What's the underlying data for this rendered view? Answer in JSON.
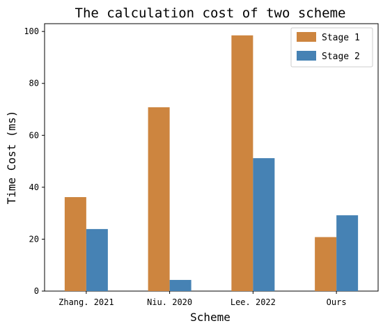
{
  "chart_data": {
    "type": "bar",
    "title": "The calculation cost of two scheme",
    "xlabel": "Scheme",
    "ylabel": "Time Cost (ms)",
    "categories": [
      "Zhang. 2021",
      "Niu. 2020",
      "Lee. 2022",
      "Ours"
    ],
    "series": [
      {
        "name": "Stage 1",
        "values": [
          36.2,
          70.8,
          98.5,
          20.8
        ],
        "color": "#CD853F"
      },
      {
        "name": "Stage 2",
        "values": [
          23.9,
          4.3,
          51.2,
          29.2
        ],
        "color": "#4682B4"
      }
    ],
    "ylim": [
      0,
      103
    ],
    "yticks": [
      0,
      20,
      40,
      60,
      80,
      100
    ],
    "grid": false,
    "legend_position": "top-right"
  }
}
